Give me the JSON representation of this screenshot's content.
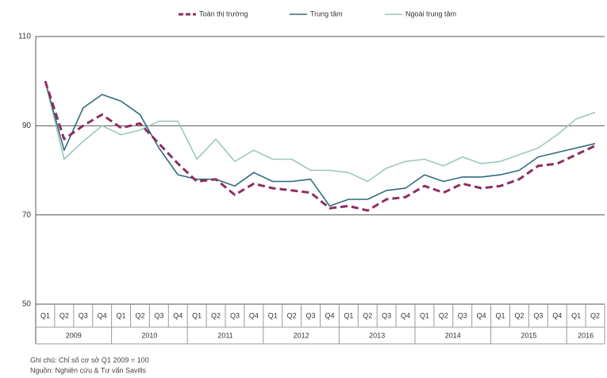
{
  "chart_data": {
    "type": "line",
    "categories": [
      "Q1",
      "Q2",
      "Q3",
      "Q4",
      "Q1",
      "Q2",
      "Q3",
      "Q4",
      "Q1",
      "Q2",
      "Q3",
      "Q4",
      "Q1",
      "Q2",
      "Q3",
      "Q4",
      "Q1",
      "Q2",
      "Q3",
      "Q4",
      "Q1",
      "Q2",
      "Q3",
      "Q4",
      "Q1",
      "Q2",
      "Q3",
      "Q4",
      "Q1",
      "Q2"
    ],
    "years": [
      "2009",
      "2010",
      "2011",
      "2012",
      "2013",
      "2014",
      "2015",
      "2016"
    ],
    "series": [
      {
        "name": "Toàn thị trường",
        "color": "#8e2d62",
        "dashed": true,
        "values": [
          100,
          87,
          90,
          92.5,
          89.5,
          90.5,
          86,
          81.5,
          77.5,
          78,
          74.5,
          77,
          76,
          75.5,
          75,
          71.5,
          72,
          71,
          73.5,
          74,
          76.5,
          75,
          77,
          76,
          76.5,
          78,
          81,
          81.5,
          83.5,
          85.5
        ]
      },
      {
        "name": "Trung tâm",
        "color": "#2f6c7c",
        "dashed": false,
        "values": [
          100,
          84.5,
          94,
          97,
          95.5,
          92.5,
          85,
          79,
          78,
          78,
          76.5,
          79.5,
          77.5,
          77.5,
          78,
          72,
          73.5,
          73.5,
          75.5,
          76,
          79,
          77.5,
          78.5,
          78.5,
          79,
          80,
          83,
          84,
          85,
          86
        ]
      },
      {
        "name": "Ngoài trung tâm",
        "color": "#9ec8b6",
        "dashed": false,
        "values": [
          100,
          82.5,
          86.5,
          90,
          88,
          89,
          91,
          91,
          82.5,
          87,
          82,
          84.5,
          82.5,
          82.5,
          80,
          80,
          79.5,
          77.5,
          80.5,
          82,
          82.5,
          81,
          83,
          81.5,
          82,
          83.5,
          85,
          88,
          91.5,
          93
        ]
      }
    ],
    "ylim": [
      50,
      110
    ],
    "yticks": [
      50,
      70,
      90,
      110
    ],
    "grid": true,
    "notes": [
      "Ghi chú: Chỉ số cơ sở Q1 2009 = 100",
      "Nguồn: Nghiên cứu & Tư vấn Savills"
    ]
  }
}
